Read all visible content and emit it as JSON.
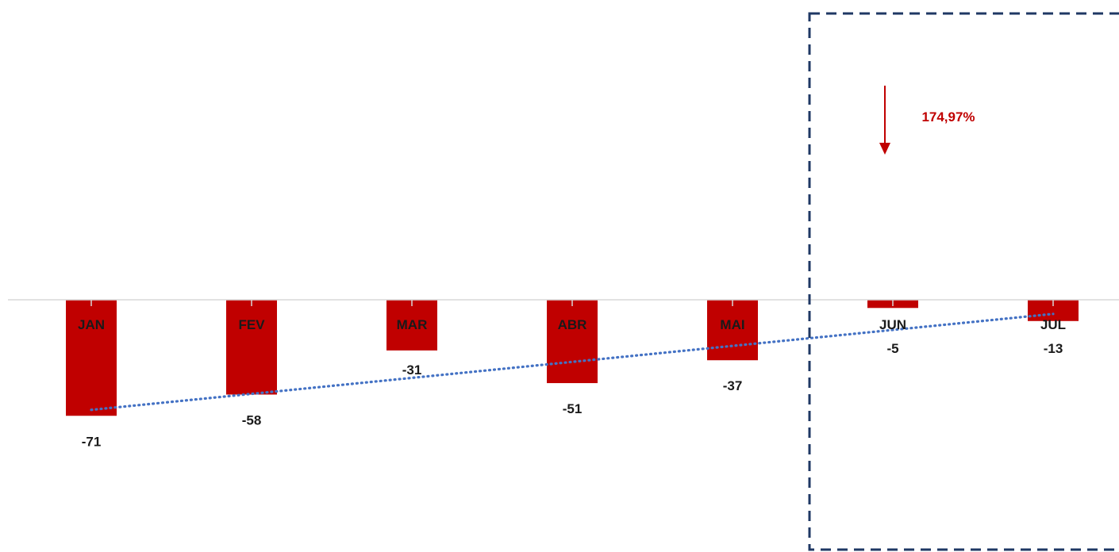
{
  "chart_data": {
    "type": "bar",
    "categories": [
      "JAN",
      "FEV",
      "MAR",
      "ABR",
      "MAI",
      "JUN",
      "JUL"
    ],
    "values": [
      -71,
      -58,
      -31,
      -51,
      -37,
      -5,
      -13
    ],
    "trendline": {
      "style": "dotted",
      "type": "linear",
      "color": "#4472c4"
    },
    "ylim": [
      -160,
      160
    ],
    "bar_color": "#c00000",
    "highlight": {
      "categories": [
        "JUN",
        "JUL"
      ],
      "annotation": "174,97%",
      "arrow": "down",
      "color": "#c00000",
      "border_color": "#1f3864"
    },
    "grid": false
  }
}
